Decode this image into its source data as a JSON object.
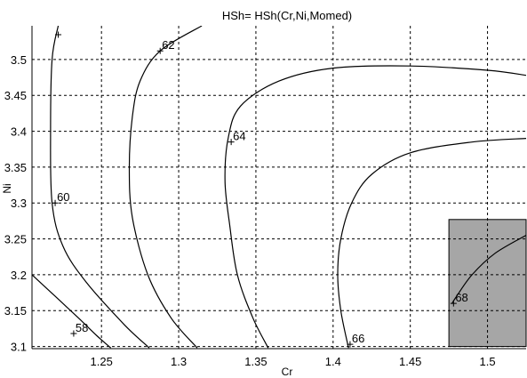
{
  "chart_data": {
    "type": "contour",
    "title": "HSh= HSh(Cr,Ni,Momed)",
    "xlabel": "Cr",
    "ylabel": "Ni",
    "xlim": [
      1.205,
      1.525
    ],
    "ylim": [
      3.097,
      3.547
    ],
    "grid": true,
    "x_ticks": [
      1.25,
      1.3,
      1.35,
      1.4,
      1.45,
      1.5
    ],
    "x_tick_labels": [
      "1.25",
      "1.3",
      "1.35",
      "1.4",
      "1.45",
      "1.5"
    ],
    "y_ticks": [
      3.1,
      3.15,
      3.2,
      3.25,
      3.3,
      3.35,
      3.4,
      3.45,
      3.5
    ],
    "y_tick_labels": [
      "3.1",
      "3.15",
      "3.2",
      "3.25",
      "3.3",
      "3.35",
      "3.4",
      "3.45",
      "3.5"
    ],
    "contours": [
      {
        "level": "58",
        "label_at": [
          1.232,
          3.118
        ],
        "points": [
          [
            1.205,
            3.2
          ],
          [
            1.22,
            3.17
          ],
          [
            1.235,
            3.14
          ],
          [
            1.247,
            3.115
          ],
          [
            1.256,
            3.098
          ]
        ]
      },
      {
        "level": "60",
        "label_at": [
          1.22,
          3.3
        ],
        "points": [
          [
            1.222,
            3.547
          ],
          [
            1.218,
            3.5
          ],
          [
            1.217,
            3.4
          ],
          [
            1.218,
            3.3
          ],
          [
            1.225,
            3.24
          ],
          [
            1.24,
            3.19
          ],
          [
            1.265,
            3.13
          ],
          [
            1.281,
            3.098
          ]
        ]
      },
      {
        "level": "62",
        "label_at": [
          1.288,
          3.512
        ],
        "points": [
          [
            1.315,
            3.547
          ],
          [
            1.288,
            3.512
          ],
          [
            1.275,
            3.47
          ],
          [
            1.27,
            3.42
          ],
          [
            1.268,
            3.35
          ],
          [
            1.27,
            3.28
          ],
          [
            1.28,
            3.2
          ],
          [
            1.295,
            3.14
          ],
          [
            1.312,
            3.098
          ]
        ]
      },
      {
        "level": "64",
        "label_at": [
          1.334,
          3.385
        ],
        "points": [
          [
            1.525,
            3.478
          ],
          [
            1.5,
            3.485
          ],
          [
            1.45,
            3.491
          ],
          [
            1.4,
            3.488
          ],
          [
            1.365,
            3.47
          ],
          [
            1.34,
            3.435
          ],
          [
            1.332,
            3.39
          ],
          [
            1.33,
            3.33
          ],
          [
            1.333,
            3.27
          ],
          [
            1.338,
            3.2
          ],
          [
            1.348,
            3.14
          ],
          [
            1.358,
            3.098
          ]
        ]
      },
      {
        "level": "66",
        "label_at": [
          1.411,
          3.103
        ],
        "points": [
          [
            1.525,
            3.39
          ],
          [
            1.49,
            3.385
          ],
          [
            1.45,
            3.37
          ],
          [
            1.425,
            3.34
          ],
          [
            1.412,
            3.3
          ],
          [
            1.405,
            3.25
          ],
          [
            1.403,
            3.2
          ],
          [
            1.405,
            3.15
          ],
          [
            1.41,
            3.098
          ]
        ]
      },
      {
        "level": "68",
        "label_at": [
          1.478,
          3.16
        ],
        "points": [
          [
            1.525,
            3.255
          ],
          [
            1.505,
            3.23
          ],
          [
            1.49,
            3.2
          ],
          [
            1.48,
            3.17
          ],
          [
            1.477,
            3.16
          ]
        ]
      }
    ],
    "highlight_region": {
      "x": [
        1.475,
        1.525
      ],
      "y": [
        3.1,
        3.277
      ],
      "color": "#a6a6a6"
    },
    "colors": {
      "line": "#000000",
      "grid": "#000000",
      "highlight": "#a6a6a6",
      "background": "#ffffff"
    }
  }
}
